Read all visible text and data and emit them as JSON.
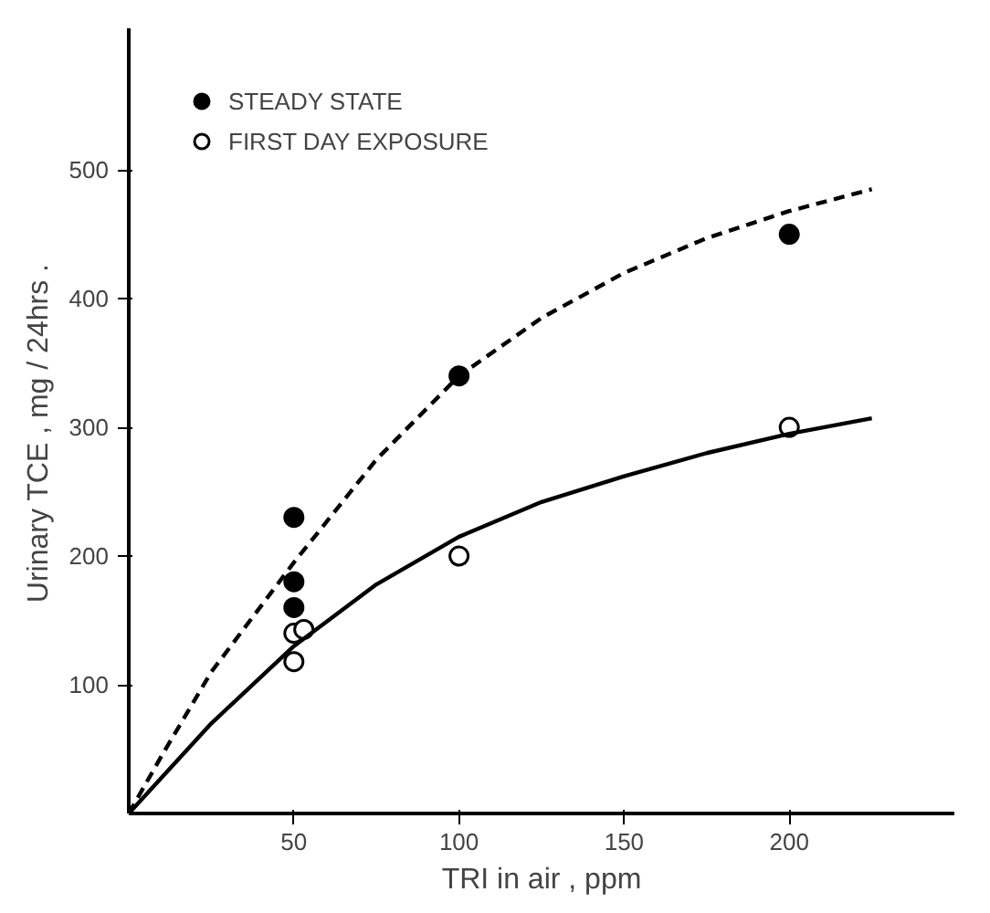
{
  "chart_data": {
    "type": "scatter",
    "xlabel": "TRI in air , ppm",
    "ylabel": "Urinary   TCE ,  mg / 24hrs .",
    "xlim": [
      0,
      250
    ],
    "ylim": [
      0,
      610
    ],
    "xticks": [
      50,
      100,
      150,
      200
    ],
    "yticks": [
      100,
      200,
      300,
      400,
      500
    ],
    "grid": false,
    "legend": "top left",
    "series": [
      {
        "name": "STEADY STATE",
        "marker": "circle",
        "color": "#000000",
        "x": [
          50,
          50,
          50,
          100,
          200
        ],
        "values": [
          230,
          180,
          160,
          340,
          450
        ]
      },
      {
        "type": "line",
        "line_style": "dashed",
        "color": "#000000",
        "x": [
          0,
          10,
          25,
          50,
          75,
          100,
          125,
          150,
          175,
          200,
          225
        ],
        "values": [
          0,
          45,
          110,
          195,
          275,
          340,
          385,
          420,
          447,
          468,
          485
        ]
      },
      {
        "name": "FIRST DAY EXPOSURE",
        "marker": "circle_open",
        "color": "#000000",
        "x": [
          50,
          53,
          50,
          100,
          200
        ],
        "values": [
          140,
          143,
          118,
          200,
          300
        ]
      },
      {
        "type": "line",
        "line_style": "solid",
        "color": "#000000",
        "x": [
          0,
          10,
          25,
          50,
          75,
          100,
          125,
          150,
          175,
          200,
          225
        ],
        "values": [
          0,
          28,
          70,
          130,
          178,
          215,
          242,
          262,
          280,
          295,
          307
        ]
      }
    ]
  }
}
